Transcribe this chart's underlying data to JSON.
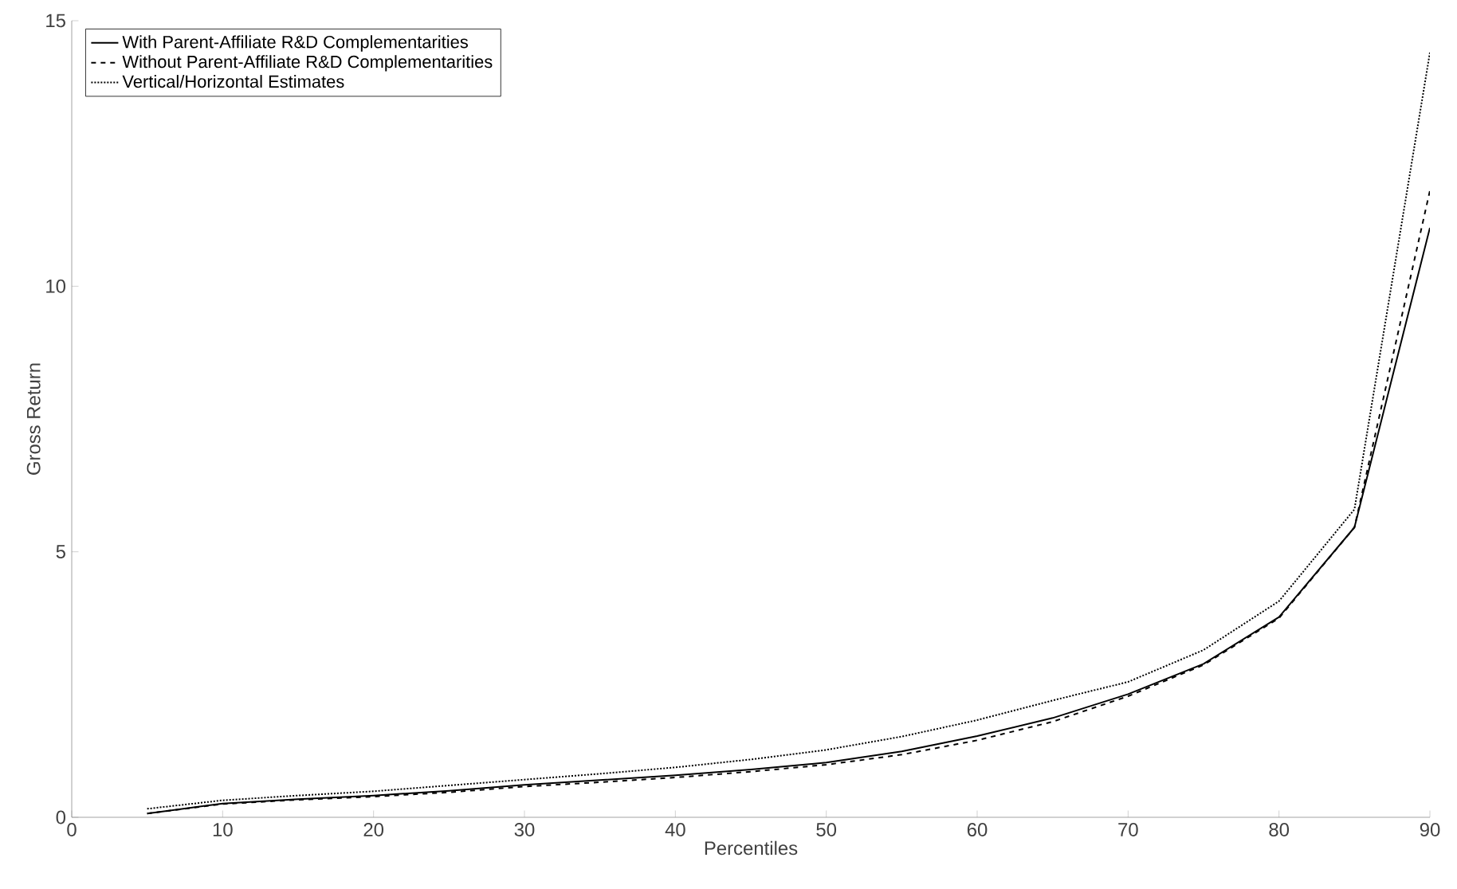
{
  "chart_data": {
    "type": "line",
    "xlabel": "Percentiles",
    "ylabel": "Gross Return",
    "x": [
      5,
      10,
      15,
      20,
      25,
      30,
      35,
      40,
      45,
      50,
      55,
      60,
      65,
      70,
      75,
      80,
      85,
      90
    ],
    "series": [
      {
        "name": "With Parent-Affiliate R&D Complementarities",
        "color": "#000000",
        "line_style": "solid",
        "values": [
          0.07,
          0.26,
          0.34,
          0.41,
          0.5,
          0.61,
          0.7,
          0.79,
          0.9,
          1.03,
          1.24,
          1.53,
          1.87,
          2.32,
          2.89,
          3.77,
          5.46,
          11.1
        ]
      },
      {
        "name": "Without Parent-Affiliate R&D Complementarities",
        "color": "#000000",
        "line_style": "dashed",
        "values": [
          0.07,
          0.25,
          0.33,
          0.39,
          0.47,
          0.58,
          0.66,
          0.75,
          0.86,
          0.99,
          1.18,
          1.45,
          1.8,
          2.28,
          2.87,
          3.75,
          5.46,
          11.8
        ]
      },
      {
        "name": "Vertical/Horizontal Estimates",
        "color": "#000000",
        "line_style": "dotted",
        "values": [
          0.16,
          0.32,
          0.41,
          0.49,
          0.6,
          0.71,
          0.82,
          0.94,
          1.09,
          1.27,
          1.52,
          1.83,
          2.2,
          2.55,
          3.15,
          4.07,
          5.8,
          14.4
        ]
      }
    ],
    "xlim": [
      0,
      90
    ],
    "ylim": [
      0,
      15
    ],
    "xticks": [
      0,
      10,
      20,
      30,
      40,
      50,
      60,
      70,
      80,
      90
    ],
    "yticks": [
      0,
      5,
      10,
      15
    ],
    "legend": "top left",
    "grid": false
  }
}
